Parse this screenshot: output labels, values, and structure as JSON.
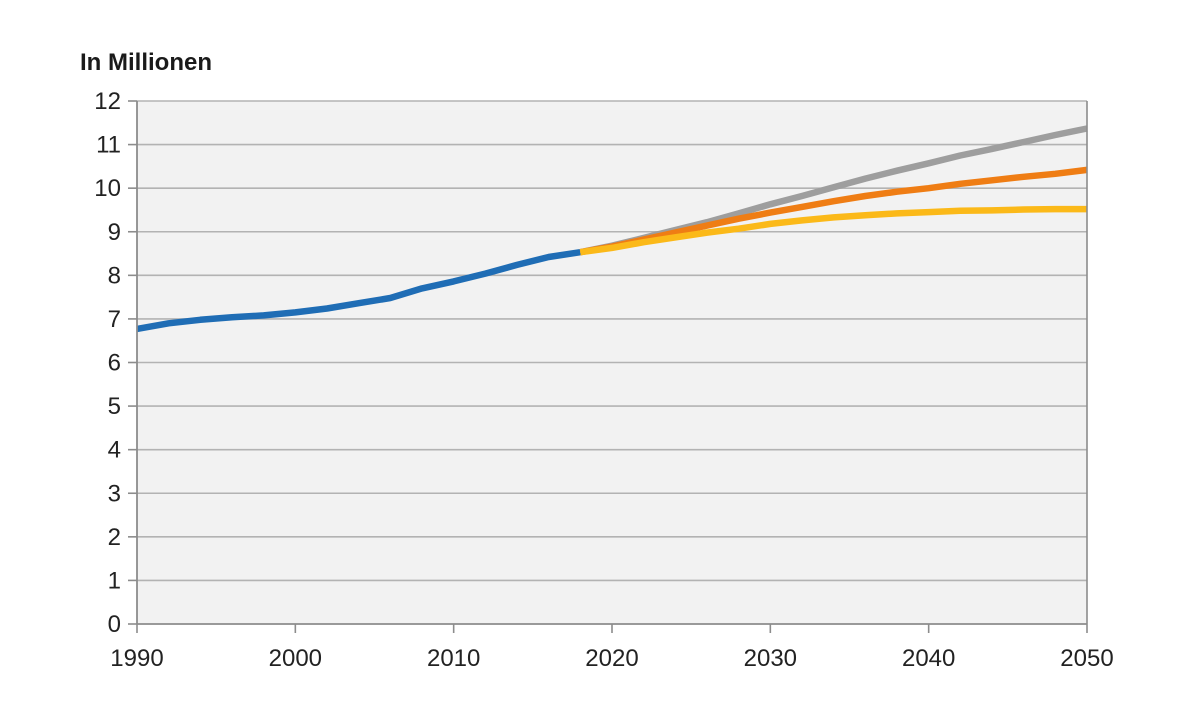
{
  "chart_data": {
    "type": "line",
    "title": "",
    "xlabel": "",
    "ylabel": "In Millionen",
    "xlim": [
      1990,
      2050
    ],
    "ylim": [
      0,
      12
    ],
    "x_ticks": [
      1990,
      2000,
      2010,
      2020,
      2030,
      2040,
      2050
    ],
    "y_ticks": [
      0,
      1,
      2,
      3,
      4,
      5,
      6,
      7,
      8,
      9,
      10,
      11,
      12
    ],
    "grid": true,
    "legend": "none",
    "colors": {
      "plot_background": "#f2f2f2",
      "grid": "#b3b3b3",
      "axis": "#8c8c8c"
    },
    "series": [
      {
        "color": "#1f6db5",
        "points": [
          [
            1990,
            6.77
          ],
          [
            1992,
            6.9
          ],
          [
            1994,
            6.98
          ],
          [
            1996,
            7.04
          ],
          [
            1998,
            7.08
          ],
          [
            2000,
            7.15
          ],
          [
            2002,
            7.24
          ],
          [
            2004,
            7.36
          ],
          [
            2006,
            7.48
          ],
          [
            2008,
            7.7
          ],
          [
            2010,
            7.86
          ],
          [
            2012,
            8.04
          ],
          [
            2014,
            8.24
          ],
          [
            2016,
            8.42
          ],
          [
            2018,
            8.53
          ]
        ]
      },
      {
        "color": "#9e9e9e",
        "points": [
          [
            2018,
            8.53
          ],
          [
            2020,
            8.68
          ],
          [
            2022,
            8.86
          ],
          [
            2024,
            9.04
          ],
          [
            2026,
            9.22
          ],
          [
            2028,
            9.42
          ],
          [
            2030,
            9.63
          ],
          [
            2032,
            9.82
          ],
          [
            2034,
            10.02
          ],
          [
            2036,
            10.22
          ],
          [
            2038,
            10.4
          ],
          [
            2040,
            10.57
          ],
          [
            2042,
            10.75
          ],
          [
            2044,
            10.9
          ],
          [
            2046,
            11.06
          ],
          [
            2048,
            11.22
          ],
          [
            2050,
            11.37
          ]
        ]
      },
      {
        "color": "#ef7d14",
        "points": [
          [
            2018,
            8.53
          ],
          [
            2020,
            8.66
          ],
          [
            2022,
            8.82
          ],
          [
            2024,
            8.98
          ],
          [
            2026,
            9.14
          ],
          [
            2028,
            9.3
          ],
          [
            2030,
            9.44
          ],
          [
            2032,
            9.57
          ],
          [
            2034,
            9.7
          ],
          [
            2036,
            9.82
          ],
          [
            2038,
            9.92
          ],
          [
            2040,
            10.0
          ],
          [
            2042,
            10.1
          ],
          [
            2044,
            10.18
          ],
          [
            2046,
            10.26
          ],
          [
            2048,
            10.33
          ],
          [
            2050,
            10.42
          ]
        ]
      },
      {
        "color": "#fbb919",
        "points": [
          [
            2018,
            8.53
          ],
          [
            2020,
            8.63
          ],
          [
            2022,
            8.76
          ],
          [
            2024,
            8.87
          ],
          [
            2026,
            8.98
          ],
          [
            2028,
            9.07
          ],
          [
            2030,
            9.18
          ],
          [
            2032,
            9.26
          ],
          [
            2034,
            9.33
          ],
          [
            2036,
            9.38
          ],
          [
            2038,
            9.42
          ],
          [
            2040,
            9.45
          ],
          [
            2042,
            9.48
          ],
          [
            2044,
            9.49
          ],
          [
            2046,
            9.51
          ],
          [
            2048,
            9.52
          ],
          [
            2050,
            9.52
          ]
        ]
      }
    ]
  }
}
